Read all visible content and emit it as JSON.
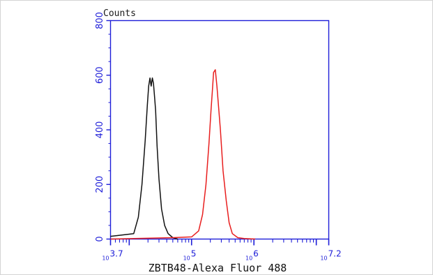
{
  "chart_data": {
    "type": "line",
    "title": "",
    "ylabel": "Counts",
    "xlabel": "ZBTB48-Alexa Fluor 488",
    "x_scale": "log10",
    "xlim": [
      5012,
      15849000
    ],
    "ylim": [
      0,
      800
    ],
    "y_ticks": [
      0,
      200,
      400,
      600,
      800
    ],
    "x_tick_labels": [
      {
        "base": "10",
        "exp": "3.7",
        "value": 5012
      },
      {
        "base": "10",
        "exp": "5",
        "value": 100000
      },
      {
        "base": "10",
        "exp": "6",
        "value": 1000000
      },
      {
        "base": "10",
        "exp": "7.2",
        "value": 15849000
      }
    ],
    "grid": false,
    "colors": {
      "axis": "#1d1dd8",
      "control": "#111111",
      "sample": "#e81e1e"
    },
    "series": [
      {
        "color": "#111111",
        "x": [
          5012,
          11800,
          14000,
          16000,
          18000,
          19500,
          20500,
          21500,
          22500,
          23500,
          24500,
          25500,
          26500,
          28000,
          30000,
          33000,
          37000,
          42000,
          50000,
          60000
        ],
        "y": [
          10,
          20,
          80,
          200,
          360,
          490,
          560,
          590,
          560,
          590,
          570,
          520,
          470,
          340,
          220,
          110,
          50,
          20,
          5,
          0
        ]
      },
      {
        "color": "#e81e1e",
        "x": [
          5012,
          50000,
          100000,
          130000,
          150000,
          170000,
          190000,
          205000,
          215000,
          225000,
          240000,
          255000,
          270000,
          290000,
          320000,
          360000,
          400000,
          450000,
          550000,
          700000,
          1050000
        ],
        "y": [
          0,
          5,
          8,
          30,
          90,
          200,
          350,
          470,
          540,
          610,
          620,
          560,
          490,
          400,
          250,
          140,
          60,
          20,
          5,
          2,
          0
        ]
      }
    ]
  }
}
